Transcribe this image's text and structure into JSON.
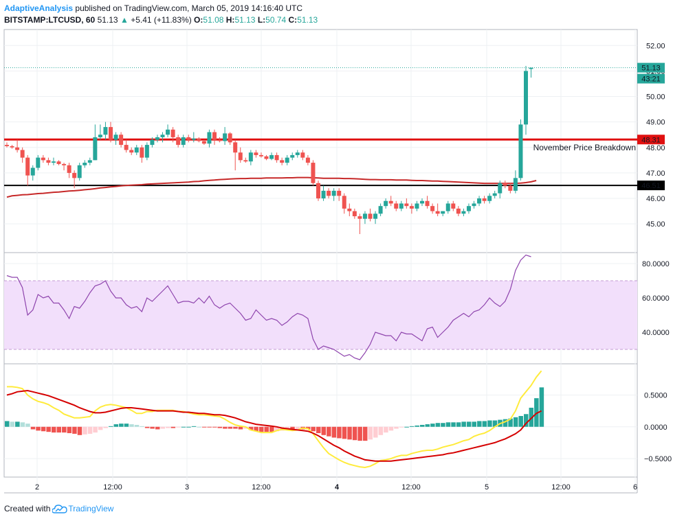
{
  "header": {
    "author": "AdaptiveAnalysis",
    "published": "published on TradingView.com, March 05, 2019 14:16:40 UTC",
    "symbol": "BITSTAMP:LTCUSD, 60",
    "last": "51.13",
    "change": "+5.41 (+11.83%)",
    "o_label": "O:",
    "o_value": "51.08",
    "h_label": "H:",
    "h_value": "51.13",
    "l_label": "L:",
    "l_value": "50.74",
    "c_label": "C:",
    "c_value": "51.13"
  },
  "footer": {
    "created_with": "Created with",
    "brand": "TradingView"
  },
  "colors": {
    "up": "#26a69a",
    "down": "#ef5350",
    "ma": "#c62828",
    "rsi": "#8e44ad",
    "rsi_band": "#f2dffb",
    "macd": "#d50000",
    "signal": "#ffeb3b",
    "hist_up_strong": "#26a69a",
    "hist_up_weak": "#b2dfdb",
    "hist_down_strong": "#ef5350",
    "hist_down_weak": "#ffcdd2",
    "res_line": "#e01010",
    "sup_line": "#000000"
  },
  "chart_data": [
    {
      "type": "candlestick",
      "title": "BITSTAMP:LTCUSD, 60",
      "ylim": [
        43.9,
        52.6
      ],
      "yticks": [
        45.0,
        46.0,
        47.0,
        48.0,
        49.0,
        50.0,
        51.0,
        52.0
      ],
      "ytick_labels": [
        "45.00",
        "46.00",
        "47.00",
        "48.00",
        "49.00",
        "50.00",
        "51.00",
        "52.00"
      ],
      "xtick_labels": [
        "2",
        "12:00",
        "3",
        "12:00",
        "4",
        "12:00",
        "5",
        "12:00",
        "6"
      ],
      "ohlc": [
        [
          48.1,
          48.2,
          48.0,
          48.05
        ],
        [
          48.05,
          48.1,
          47.95,
          48.0
        ],
        [
          48.0,
          48.3,
          47.8,
          47.9
        ],
        [
          47.9,
          48.0,
          47.4,
          47.6
        ],
        [
          47.6,
          47.7,
          46.5,
          46.9
        ],
        [
          46.9,
          47.3,
          46.7,
          47.2
        ],
        [
          47.2,
          47.7,
          47.1,
          47.6
        ],
        [
          47.6,
          47.7,
          47.4,
          47.5
        ],
        [
          47.5,
          47.6,
          47.3,
          47.4
        ],
        [
          47.4,
          47.6,
          47.3,
          47.45
        ],
        [
          47.45,
          47.5,
          47.3,
          47.35
        ],
        [
          47.35,
          47.4,
          47.1,
          47.3
        ],
        [
          47.3,
          47.4,
          46.8,
          47.0
        ],
        [
          47.0,
          47.1,
          46.4,
          46.8
        ],
        [
          46.8,
          47.4,
          46.7,
          47.3
        ],
        [
          47.3,
          47.5,
          47.2,
          47.4
        ],
        [
          47.4,
          47.6,
          47.3,
          47.5
        ],
        [
          47.5,
          48.9,
          47.5,
          48.4
        ],
        [
          48.4,
          48.9,
          48.3,
          48.5
        ],
        [
          48.5,
          49.0,
          48.3,
          48.8
        ],
        [
          48.8,
          49.0,
          48.2,
          48.3
        ],
        [
          48.3,
          48.6,
          48.1,
          48.5
        ],
        [
          48.5,
          48.6,
          48.0,
          48.1
        ],
        [
          48.1,
          48.3,
          47.8,
          47.9
        ],
        [
          47.9,
          48.0,
          47.7,
          47.8
        ],
        [
          47.8,
          48.1,
          47.7,
          48.0
        ],
        [
          48.0,
          48.1,
          47.4,
          47.6
        ],
        [
          47.6,
          48.2,
          47.5,
          48.1
        ],
        [
          48.1,
          48.4,
          48.0,
          48.3
        ],
        [
          48.3,
          48.5,
          48.2,
          48.4
        ],
        [
          48.4,
          48.6,
          48.2,
          48.5
        ],
        [
          48.5,
          48.9,
          48.4,
          48.7
        ],
        [
          48.7,
          48.8,
          48.2,
          48.4
        ],
        [
          48.4,
          48.5,
          48.0,
          48.1
        ],
        [
          48.1,
          48.5,
          48.0,
          48.4
        ],
        [
          48.4,
          48.5,
          48.2,
          48.3
        ],
        [
          48.3,
          48.6,
          48.2,
          48.35
        ],
        [
          48.35,
          48.4,
          48.2,
          48.25
        ],
        [
          48.25,
          48.3,
          48.1,
          48.15
        ],
        [
          48.15,
          48.7,
          48.0,
          48.6
        ],
        [
          48.6,
          48.7,
          48.1,
          48.3
        ],
        [
          48.3,
          48.4,
          48.2,
          48.25
        ],
        [
          48.25,
          48.8,
          48.1,
          48.55
        ],
        [
          48.55,
          48.6,
          48.1,
          48.2
        ],
        [
          48.2,
          48.3,
          47.1,
          47.8
        ],
        [
          47.8,
          48.0,
          47.4,
          47.5
        ],
        [
          47.5,
          47.6,
          47.4,
          47.45
        ],
        [
          47.45,
          47.9,
          47.3,
          47.8
        ],
        [
          47.8,
          47.9,
          47.6,
          47.7
        ],
        [
          47.7,
          47.8,
          47.6,
          47.65
        ],
        [
          47.65,
          47.7,
          47.5,
          47.55
        ],
        [
          47.55,
          47.8,
          47.5,
          47.7
        ],
        [
          47.7,
          47.8,
          47.4,
          47.5
        ],
        [
          47.5,
          47.6,
          47.3,
          47.4
        ],
        [
          47.4,
          47.7,
          47.3,
          47.6
        ],
        [
          47.6,
          47.8,
          47.5,
          47.7
        ],
        [
          47.7,
          47.9,
          47.6,
          47.8
        ],
        [
          47.8,
          47.9,
          47.5,
          47.6
        ],
        [
          47.6,
          47.7,
          47.3,
          47.4
        ],
        [
          47.4,
          47.5,
          46.5,
          46.6
        ],
        [
          46.6,
          46.7,
          45.9,
          46.0
        ],
        [
          46.0,
          46.5,
          45.9,
          46.3
        ],
        [
          46.3,
          46.4,
          46.0,
          46.1
        ],
        [
          46.1,
          46.4,
          45.9,
          46.3
        ],
        [
          46.3,
          46.4,
          45.9,
          46.1
        ],
        [
          46.1,
          46.2,
          45.4,
          45.6
        ],
        [
          45.6,
          45.8,
          45.3,
          45.5
        ],
        [
          45.5,
          45.6,
          45.2,
          45.3
        ],
        [
          45.3,
          45.4,
          44.6,
          45.2
        ],
        [
          45.2,
          45.5,
          45.0,
          45.4
        ],
        [
          45.4,
          45.6,
          45.1,
          45.2
        ],
        [
          45.2,
          45.5,
          45.0,
          45.4
        ],
        [
          45.4,
          45.8,
          45.3,
          45.7
        ],
        [
          45.7,
          46.0,
          45.6,
          45.9
        ],
        [
          45.9,
          46.1,
          45.7,
          45.8
        ],
        [
          45.8,
          45.9,
          45.5,
          45.6
        ],
        [
          45.6,
          45.9,
          45.5,
          45.8
        ],
        [
          45.8,
          46.0,
          45.6,
          45.7
        ],
        [
          45.7,
          45.8,
          45.4,
          45.6
        ],
        [
          45.6,
          45.9,
          45.5,
          45.8
        ],
        [
          45.8,
          46.0,
          45.7,
          45.9
        ],
        [
          45.9,
          46.1,
          45.6,
          45.7
        ],
        [
          45.7,
          45.8,
          45.4,
          45.5
        ],
        [
          45.5,
          45.8,
          45.3,
          45.4
        ],
        [
          45.4,
          45.5,
          45.3,
          45.5
        ],
        [
          45.5,
          45.9,
          45.4,
          45.8
        ],
        [
          45.8,
          45.9,
          45.5,
          45.6
        ],
        [
          45.6,
          45.7,
          45.3,
          45.4
        ],
        [
          45.4,
          45.6,
          45.3,
          45.5
        ],
        [
          45.5,
          45.8,
          45.4,
          45.7
        ],
        [
          45.7,
          45.9,
          45.6,
          45.8
        ],
        [
          45.8,
          46.1,
          45.7,
          46.0
        ],
        [
          46.0,
          46.1,
          45.8,
          45.9
        ],
        [
          45.9,
          46.2,
          45.8,
          46.1
        ],
        [
          46.1,
          46.3,
          46.0,
          46.2
        ],
        [
          46.2,
          46.7,
          46.0,
          46.6
        ],
        [
          46.6,
          46.7,
          46.4,
          46.5
        ],
        [
          46.5,
          46.6,
          46.2,
          46.3
        ],
        [
          46.3,
          47.1,
          46.2,
          46.8
        ],
        [
          46.8,
          49.1,
          46.7,
          48.9
        ],
        [
          48.9,
          51.2,
          48.5,
          51.0
        ],
        [
          51.08,
          51.13,
          50.74,
          51.13
        ]
      ],
      "ma": [
        46.05,
        46.1,
        46.12,
        46.14,
        46.15,
        46.17,
        46.19,
        46.2,
        46.22,
        46.24,
        46.25,
        46.27,
        46.29,
        46.3,
        46.32,
        46.34,
        46.36,
        46.38,
        46.41,
        46.43,
        46.45,
        46.47,
        46.49,
        46.51,
        46.52,
        46.53,
        46.54,
        46.56,
        46.57,
        46.58,
        46.59,
        46.6,
        46.61,
        46.62,
        46.63,
        46.64,
        46.66,
        46.67,
        46.69,
        46.71,
        46.72,
        46.74,
        46.75,
        46.76,
        46.77,
        46.78,
        46.78,
        46.79,
        46.79,
        46.79,
        46.8,
        46.8,
        46.8,
        46.8,
        46.81,
        46.81,
        46.82,
        46.82,
        46.82,
        46.81,
        46.8,
        46.79,
        46.79,
        46.79,
        46.79,
        46.78,
        46.78,
        46.77,
        46.76,
        46.75,
        46.74,
        46.74,
        46.73,
        46.73,
        46.73,
        46.72,
        46.72,
        46.72,
        46.71,
        46.7,
        46.7,
        46.69,
        46.68,
        46.68,
        46.67,
        46.66,
        46.65,
        46.64,
        46.63,
        46.62,
        46.61,
        46.6,
        46.59,
        46.59,
        46.59,
        46.59,
        46.59,
        46.59,
        46.59,
        46.6,
        46.62,
        46.65,
        46.7
      ],
      "resistance": 48.31,
      "resistance_label": "48.31",
      "resistance_annotation": "November Price Breakdown",
      "support": 46.51,
      "support_label": "46.51",
      "last_price_label": "51.13",
      "countdown_label": "43:21"
    },
    {
      "type": "line",
      "title": "RSI",
      "ylim": [
        22,
        86
      ],
      "yticks": [
        40,
        60,
        80
      ],
      "ytick_labels": [
        "40.0000",
        "60.0000",
        "80.0000"
      ],
      "band": [
        30,
        70
      ],
      "values": [
        73,
        72,
        72,
        66,
        50,
        53,
        62,
        60,
        61,
        57,
        57,
        53,
        48,
        55,
        54,
        58,
        63,
        67,
        68,
        70,
        64,
        60,
        60,
        56,
        54,
        55,
        52,
        60,
        58,
        61,
        64,
        67,
        62,
        57,
        58,
        58,
        57,
        60,
        57,
        61,
        56,
        54,
        56,
        57,
        54,
        51,
        47,
        48,
        53,
        50,
        47,
        48,
        47,
        44,
        46,
        49,
        51,
        50,
        48,
        36,
        30,
        32,
        31,
        30,
        28,
        26,
        27,
        25,
        24,
        28,
        33,
        40,
        39,
        38,
        38,
        35,
        40,
        39,
        39,
        37,
        35,
        42,
        43,
        37,
        40,
        43,
        47,
        49,
        51,
        49,
        52,
        53,
        56,
        60,
        57,
        55,
        58,
        65,
        76,
        82,
        85,
        84
      ]
    },
    {
      "type": "line+bar",
      "title": "MACD",
      "ylim": [
        -0.78,
        0.98
      ],
      "yticks": [
        -0.5,
        0.0,
        0.5
      ],
      "ytick_labels": [
        "−0.5000",
        "0.0000",
        "0.5000"
      ],
      "series": [
        {
          "name": "MACD",
          "values": [
            0.5,
            0.52,
            0.55,
            0.56,
            0.57,
            0.55,
            0.53,
            0.51,
            0.49,
            0.46,
            0.43,
            0.4,
            0.37,
            0.34,
            0.3,
            0.27,
            0.24,
            0.22,
            0.22,
            0.23,
            0.25,
            0.27,
            0.29,
            0.3,
            0.3,
            0.29,
            0.28,
            0.27,
            0.26,
            0.25,
            0.25,
            0.25,
            0.25,
            0.24,
            0.23,
            0.23,
            0.22,
            0.21,
            0.21,
            0.2,
            0.19,
            0.19,
            0.18,
            0.16,
            0.14,
            0.11,
            0.08,
            0.06,
            0.04,
            0.03,
            0.02,
            0.01,
            0.0,
            -0.02,
            -0.03,
            -0.04,
            -0.05,
            -0.06,
            -0.07,
            -0.1,
            -0.14,
            -0.19,
            -0.24,
            -0.29,
            -0.33,
            -0.38,
            -0.42,
            -0.46,
            -0.49,
            -0.52,
            -0.53,
            -0.54,
            -0.54,
            -0.54,
            -0.54,
            -0.53,
            -0.52,
            -0.51,
            -0.5,
            -0.49,
            -0.48,
            -0.47,
            -0.46,
            -0.45,
            -0.44,
            -0.42,
            -0.41,
            -0.39,
            -0.37,
            -0.35,
            -0.33,
            -0.31,
            -0.29,
            -0.27,
            -0.25,
            -0.22,
            -0.19,
            -0.15,
            -0.11,
            -0.05,
            0.05,
            0.13,
            0.21,
            0.25
          ]
        },
        {
          "name": "Signal",
          "values": [
            0.63,
            0.63,
            0.62,
            0.6,
            0.5,
            0.44,
            0.4,
            0.38,
            0.35,
            0.3,
            0.26,
            0.2,
            0.17,
            0.14,
            0.14,
            0.15,
            0.16,
            0.25,
            0.31,
            0.34,
            0.35,
            0.34,
            0.32,
            0.3,
            0.26,
            0.21,
            0.21,
            0.24,
            0.24,
            0.26,
            0.26,
            0.26,
            0.26,
            0.24,
            0.24,
            0.22,
            0.2,
            0.19,
            0.19,
            0.18,
            0.17,
            0.16,
            0.12,
            0.07,
            0.03,
            0.01,
            0.0,
            -0.05,
            -0.07,
            -0.09,
            -0.09,
            -0.09,
            -0.06,
            -0.04,
            -0.05,
            -0.06,
            -0.05,
            -0.02,
            -0.03,
            -0.11,
            -0.22,
            -0.33,
            -0.42,
            -0.47,
            -0.52,
            -0.56,
            -0.59,
            -0.61,
            -0.63,
            -0.64,
            -0.62,
            -0.58,
            -0.53,
            -0.52,
            -0.5,
            -0.47,
            -0.45,
            -0.45,
            -0.42,
            -0.4,
            -0.38,
            -0.37,
            -0.37,
            -0.35,
            -0.32,
            -0.3,
            -0.28,
            -0.25,
            -0.22,
            -0.2,
            -0.15,
            -0.12,
            -0.1,
            -0.06,
            0.0,
            0.05,
            0.08,
            0.12,
            0.25,
            0.45,
            0.55,
            0.65,
            0.78,
            0.88
          ]
        },
        {
          "name": "Histogram",
          "values": [
            0.09,
            0.08,
            0.08,
            0.07,
            0.05,
            -0.04,
            -0.06,
            -0.07,
            -0.08,
            -0.09,
            -0.09,
            -0.09,
            -0.1,
            -0.11,
            -0.13,
            -0.12,
            -0.11,
            -0.09,
            -0.05,
            -0.02,
            0.01,
            0.04,
            0.05,
            0.05,
            0.04,
            0.03,
            0.01,
            -0.02,
            -0.03,
            -0.04,
            -0.03,
            -0.02,
            -0.02,
            -0.01,
            0.0,
            0.0,
            0.01,
            0.0,
            -0.01,
            -0.01,
            -0.01,
            -0.02,
            -0.03,
            -0.03,
            -0.03,
            -0.04,
            -0.03,
            -0.05,
            -0.07,
            -0.08,
            -0.08,
            -0.08,
            -0.07,
            -0.06,
            -0.05,
            -0.05,
            -0.04,
            -0.04,
            -0.04,
            -0.07,
            -0.1,
            -0.13,
            -0.15,
            -0.17,
            -0.18,
            -0.19,
            -0.2,
            -0.21,
            -0.22,
            -0.22,
            -0.2,
            -0.17,
            -0.13,
            -0.09,
            -0.06,
            -0.03,
            -0.01,
            0.0,
            0.01,
            0.02,
            0.03,
            0.04,
            0.05,
            0.06,
            0.06,
            0.07,
            0.07,
            0.07,
            0.08,
            0.08,
            0.08,
            0.09,
            0.09,
            0.1,
            0.1,
            0.11,
            0.12,
            0.13,
            0.15,
            0.17,
            0.2,
            0.3,
            0.45,
            0.62
          ]
        }
      ]
    }
  ]
}
